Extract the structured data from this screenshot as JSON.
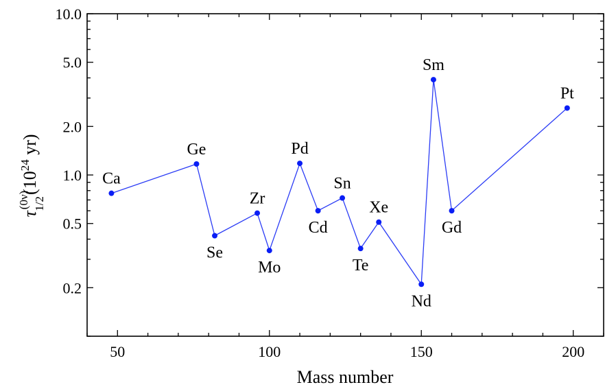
{
  "chart_data": {
    "type": "line",
    "xlabel": "Mass number",
    "ylabel_parts": {
      "symbol": "τ",
      "sup": "(0ν)",
      "sub": "1/2",
      "unit": "(10",
      "unit_exp": "24",
      "unit_end": " yr)"
    },
    "x_ticks": [
      50,
      100,
      150,
      200
    ],
    "y_ticks": [
      {
        "value": 0.2,
        "label": "0.2"
      },
      {
        "value": 0.5,
        "label": "0.5"
      },
      {
        "value": 1.0,
        "label": "1.0"
      },
      {
        "value": 2.0,
        "label": "2.0"
      },
      {
        "value": 5.0,
        "label": "5.0"
      },
      {
        "value": 10.0,
        "label": "10.0"
      }
    ],
    "xlim": [
      40,
      210
    ],
    "ylim": [
      0.1,
      10.0
    ],
    "y_scale": "log",
    "grid": false,
    "points": [
      {
        "label": "Ca",
        "x": 48,
        "y": 0.77,
        "label_pos": "above"
      },
      {
        "label": "Ge",
        "x": 76,
        "y": 1.17,
        "label_pos": "above"
      },
      {
        "label": "Se",
        "x": 82,
        "y": 0.42,
        "label_pos": "below"
      },
      {
        "label": "Zr",
        "x": 96,
        "y": 0.58,
        "label_pos": "above"
      },
      {
        "label": "Mo",
        "x": 100,
        "y": 0.34,
        "label_pos": "below"
      },
      {
        "label": "Pd",
        "x": 110,
        "y": 1.18,
        "label_pos": "above"
      },
      {
        "label": "Cd",
        "x": 116,
        "y": 0.6,
        "label_pos": "below"
      },
      {
        "label": "Sn",
        "x": 124,
        "y": 0.72,
        "label_pos": "above"
      },
      {
        "label": "Te",
        "x": 130,
        "y": 0.35,
        "label_pos": "below"
      },
      {
        "label": "Xe",
        "x": 136,
        "y": 0.51,
        "label_pos": "above"
      },
      {
        "label": "Nd",
        "x": 150,
        "y": 0.21,
        "label_pos": "below"
      },
      {
        "label": "Sm",
        "x": 154,
        "y": 3.9,
        "label_pos": "above"
      },
      {
        "label": "Gd",
        "x": 160,
        "y": 0.6,
        "label_pos": "below"
      },
      {
        "label": "Pt",
        "x": 198,
        "y": 2.6,
        "label_pos": "above"
      }
    ],
    "colors": {
      "series": "#0a1ef5",
      "line": "#2b3cf5"
    }
  }
}
